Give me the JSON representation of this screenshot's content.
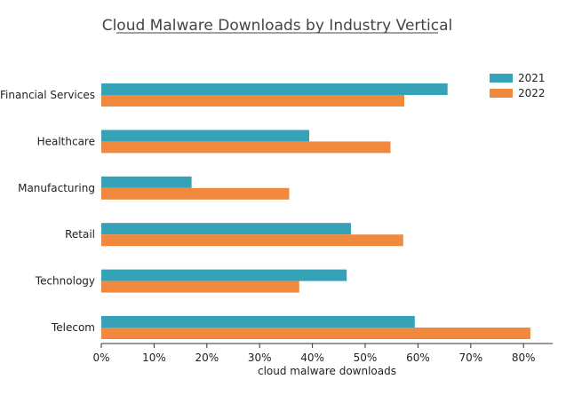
{
  "chart_data": {
    "type": "bar",
    "orientation": "horizontal",
    "title": "Cloud Malware Downloads by Industry Vertical",
    "xlabel": "cloud malware downloads",
    "ylabel": "",
    "categories": [
      "Financial Services",
      "Healthcare",
      "Manufacturing",
      "Retail",
      "Technology",
      "Telecom"
    ],
    "series": [
      {
        "name": "2021",
        "color": "#35a2b8",
        "values": [
          65.6,
          39.4,
          17.1,
          47.3,
          46.5,
          59.4
        ]
      },
      {
        "name": "2022",
        "color": "#f0883e",
        "values": [
          57.4,
          54.8,
          35.6,
          57.2,
          37.5,
          81.3
        ]
      }
    ],
    "xlim": [
      0,
      85
    ],
    "xticks": [
      0,
      10,
      20,
      30,
      40,
      50,
      60,
      70,
      80
    ],
    "xtick_labels": [
      "0%",
      "10%",
      "20%",
      "30%",
      "40%",
      "50%",
      "60%",
      "70%",
      "80%"
    ],
    "grid": false,
    "legend_position": "top-right"
  }
}
